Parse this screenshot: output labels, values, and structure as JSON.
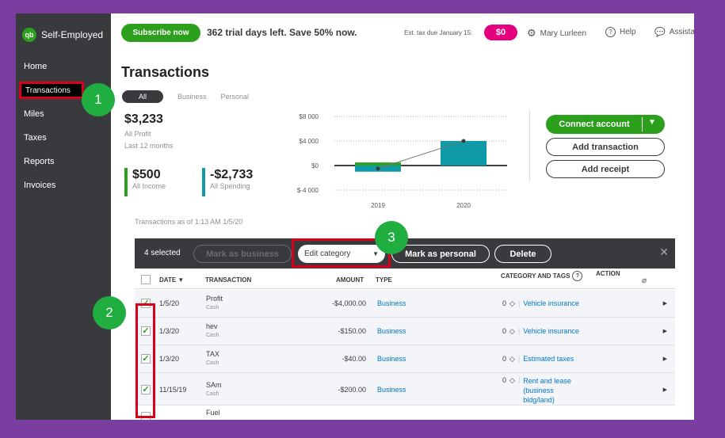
{
  "sidebar": {
    "brand": "Self-Employed",
    "logo": "qb",
    "items": [
      "Home",
      "Transactions",
      "Miles",
      "Taxes",
      "Reports",
      "Invoices"
    ]
  },
  "topbar": {
    "subscribe_label": "Subscribe now",
    "trial_text": "362 trial days left. Save 50% now.",
    "est_tax_label": "Est. tax due January 15:",
    "est_tax_value": "$0",
    "user_name": "Mary Lurleen",
    "help_label": "Help",
    "assist_label": "Assista"
  },
  "page": {
    "title": "Transactions",
    "tabs": [
      "All",
      "Business",
      "Personal"
    ]
  },
  "summary": {
    "profit_value": "$3,233",
    "profit_label": "All Profit",
    "period": "Last 12 months",
    "income_value": "$500",
    "income_label": "All Income",
    "spending_value": "-$2,733",
    "spending_label": "All Spending"
  },
  "chart_data": {
    "type": "bar",
    "categories": [
      "2019",
      "2020"
    ],
    "y_tick_labels": [
      "$8 000",
      "$4 000",
      "$0",
      "$-4 000"
    ],
    "ylim": [
      -4000,
      8000
    ],
    "series": [
      {
        "values": [
          -1000,
          4000
        ],
        "color": "#0e9aa7"
      }
    ],
    "positive_offset_2019": 500,
    "profit_line": [
      -500,
      4000
    ]
  },
  "actions": {
    "connect_label": "Connect account",
    "add_transaction_label": "Add transaction",
    "add_receipt_label": "Add receipt"
  },
  "as_of": "Transactions as of 1:13 AM 1/5/20",
  "bulk": {
    "selected_count": "4 selected",
    "mark_business": "Mark as business",
    "edit_category": "Edit category",
    "mark_personal": "Mark as personal",
    "delete": "Delete"
  },
  "table": {
    "headers": {
      "date": "DATE ▼",
      "transaction": "TRANSACTION",
      "amount": "AMOUNT",
      "type": "TYPE",
      "category": "CATEGORY AND TAGS",
      "action": "ACTION"
    },
    "rows": [
      {
        "date": "1/5/20",
        "name": "Profit",
        "source": "Cash",
        "amount": "-$4,000.00",
        "type": "Business",
        "tags": "0",
        "category": "Vehicle insurance"
      },
      {
        "date": "1/3/20",
        "name": "hev",
        "source": "Cash",
        "amount": "-$150.00",
        "type": "Business",
        "tags": "0",
        "category": "Vehicle insurance"
      },
      {
        "date": "1/3/20",
        "name": "TAX",
        "source": "Cash",
        "amount": "-$40.00",
        "type": "Business",
        "tags": "0",
        "category": "Estimated taxes"
      },
      {
        "date": "11/15/19",
        "name": "SAm",
        "source": "Cash",
        "amount": "-$200.00",
        "type": "Business",
        "tags": "0",
        "category": "Rent and lease (business bldg/land)"
      },
      {
        "date": "",
        "name": "Fuel",
        "source": "",
        "amount": "",
        "type": "",
        "tags": "",
        "category": ""
      }
    ]
  },
  "markers": [
    "1",
    "2",
    "3"
  ]
}
